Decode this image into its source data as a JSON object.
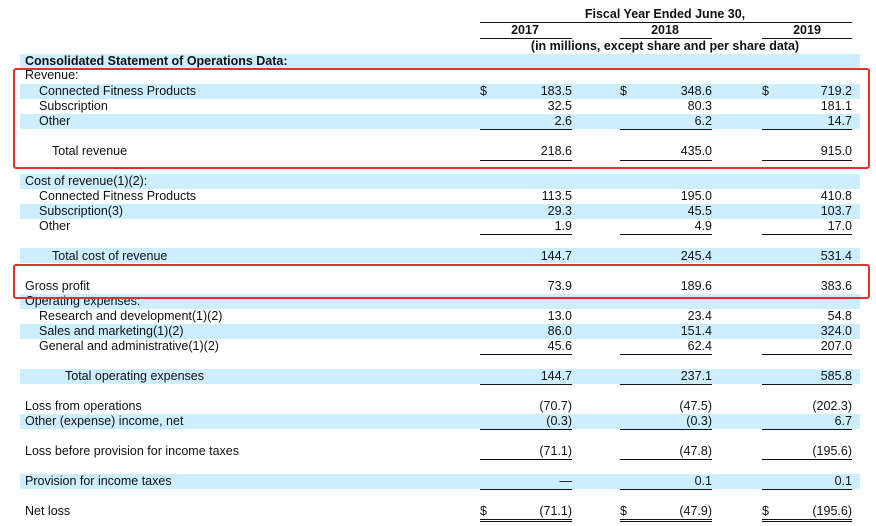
{
  "header": {
    "period": "Fiscal Year Ended June 30,",
    "years": [
      "2017",
      "2018",
      "2019"
    ],
    "units": "(in millions, except share and per share data)"
  },
  "section_title": "Consolidated Statement of Operations Data:",
  "currency_symbol": "$",
  "rows": {
    "revenue_heading": {
      "label": "Revenue:"
    },
    "cfp_revenue": {
      "label": "Connected Fitness Products",
      "values": [
        "183.5",
        "348.6",
        "719.2"
      ]
    },
    "subscription_revenue": {
      "label": "Subscription",
      "values": [
        "32.5",
        "80.3",
        "181.1"
      ]
    },
    "other_revenue": {
      "label": "Other",
      "values": [
        "2.6",
        "6.2",
        "14.7"
      ]
    },
    "total_revenue": {
      "label": "Total revenue",
      "values": [
        "218.6",
        "435.0",
        "915.0"
      ]
    },
    "cost_heading": {
      "label": "Cost of revenue(1)(2):"
    },
    "cfp_cost": {
      "label": "Connected Fitness Products",
      "values": [
        "113.5",
        "195.0",
        "410.8"
      ]
    },
    "subscription_cost": {
      "label": "Subscription(3)",
      "values": [
        "29.3",
        "45.5",
        "103.7"
      ]
    },
    "other_cost": {
      "label": "Other",
      "values": [
        "1.9",
        "4.9",
        "17.0"
      ]
    },
    "total_cost": {
      "label": "Total cost of revenue",
      "values": [
        "144.7",
        "245.4",
        "531.4"
      ]
    },
    "gross_profit": {
      "label": "Gross profit",
      "values": [
        "73.9",
        "189.6",
        "383.6"
      ]
    },
    "opex_heading": {
      "label": "Operating expenses:"
    },
    "rnd": {
      "label": "Research and development(1)(2)",
      "values": [
        "13.0",
        "23.4",
        "54.8"
      ]
    },
    "sales_marketing": {
      "label": "Sales and marketing(1)(2)",
      "values": [
        "86.0",
        "151.4",
        "324.0"
      ]
    },
    "gna": {
      "label": "General and administrative(1)(2)",
      "values": [
        "45.6",
        "62.4",
        "207.0"
      ]
    },
    "total_opex": {
      "label": "Total operating expenses",
      "values": [
        "144.7",
        "237.1",
        "585.8"
      ]
    },
    "loss_ops": {
      "label": "Loss from operations",
      "values": [
        "(70.7)",
        "(47.5)",
        "(202.3)"
      ]
    },
    "other_income": {
      "label": "Other (expense) income, net",
      "values": [
        "(0.3)",
        "(0.3)",
        "6.7"
      ]
    },
    "loss_before_tax": {
      "label": "Loss before provision for income taxes",
      "values": [
        "(71.1)",
        "(47.8)",
        "(195.6)"
      ]
    },
    "tax_provision": {
      "label": "Provision for income taxes",
      "values": [
        "—",
        "0.1",
        "0.1"
      ]
    },
    "net_loss": {
      "label": "Net loss",
      "values": [
        "(71.1)",
        "(47.9)",
        "(195.6)"
      ]
    }
  },
  "highlight_color": "#e53030",
  "stripe_color": "#cceeff"
}
